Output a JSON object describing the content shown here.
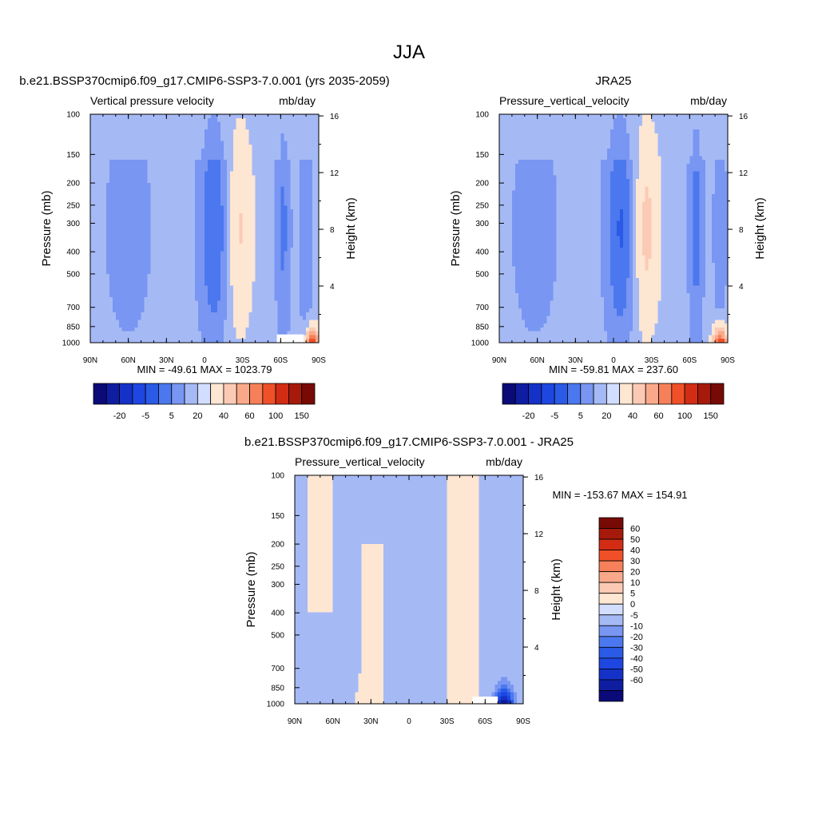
{
  "page": {
    "season_title": "JJA"
  },
  "palette": {
    "full": [
      "#0a0a78",
      "#0f1ea0",
      "#1432c8",
      "#1e46e1",
      "#2a5ae6",
      "#4b78ee",
      "#7896f2",
      "#a5b9f5",
      "#d2deff",
      "#fde6d2",
      "#fccab4",
      "#f9a98a",
      "#f6805a",
      "#f05028",
      "#d22d14",
      "#a51a0a",
      "#780a05"
    ],
    "diff": [
      "#0a0a78",
      "#0f1ea0",
      "#1432c8",
      "#1e46e1",
      "#2a5ae6",
      "#4b78ee",
      "#7896f2",
      "#a5b9f5",
      "#d2deff",
      "#fde6d2",
      "#fccab4",
      "#f9a98a",
      "#f6805a",
      "#f05028",
      "#d22d14",
      "#a51a0a",
      "#780a05"
    ]
  },
  "chart_data": [
    {
      "id": "model",
      "type": "heatmap",
      "title": "b.e21.BSSP370cmip6.f09_g17.CMIP6-SSP3-7.0.001 (yrs 2035-2059)",
      "variable": "Vertical pressure velocity",
      "units": "mb/day",
      "ylabel": "Pressure (mb)",
      "ylabel_right": "Height (km)",
      "x_ticks": [
        "90N",
        "60N",
        "30N",
        "0",
        "30S",
        "60S",
        "90S"
      ],
      "x_values": [
        90,
        60,
        30,
        0,
        -30,
        -60,
        -90
      ],
      "xlim": [
        90,
        -90
      ],
      "y_ticks": [
        100,
        150,
        200,
        250,
        300,
        400,
        500,
        700,
        850,
        1000
      ],
      "ylim": [
        1000,
        100
      ],
      "y_scale": "log",
      "right_ticks": [
        16,
        12,
        8,
        4
      ],
      "stats": "MIN = -49.61  MAX = 1023.79",
      "colorbar": {
        "orientation": "horizontal",
        "labels": [
          "-20",
          "-5",
          "5",
          "20",
          "40",
          "60",
          "100",
          "150"
        ]
      },
      "features": [
        {
          "lat": -10,
          "width": 9,
          "amp": -3.0
        },
        {
          "lat": -24,
          "width": 10,
          "amp": 2.2
        },
        {
          "lat": 60,
          "width": 14,
          "amp": -0.9
        },
        {
          "lat": -62,
          "width": 4,
          "amp": -1.6
        },
        {
          "lat": -80,
          "width": 4,
          "amp": -1.2
        }
      ],
      "polar_warm": {
        "lat": -85,
        "amp": 6.0
      },
      "missing": {
        "lat_from": -57,
        "lat_to": -78,
        "p_from": 920,
        "p_to": 1000
      }
    },
    {
      "id": "obs",
      "type": "heatmap",
      "title": "JRA25",
      "variable": "Pressure_vertical_velocity",
      "units": "mb/day",
      "ylabel": "Pressure (mb)",
      "ylabel_right": "Height (km)",
      "x_ticks": [
        "90N",
        "60N",
        "30N",
        "0",
        "30S",
        "60S",
        "90S"
      ],
      "x_values": [
        90,
        60,
        30,
        0,
        -30,
        -60,
        -90
      ],
      "xlim": [
        90,
        -90
      ],
      "y_ticks": [
        100,
        150,
        200,
        250,
        300,
        400,
        500,
        700,
        850,
        1000
      ],
      "ylim": [
        1000,
        100
      ],
      "y_scale": "log",
      "right_ticks": [
        16,
        12,
        8,
        4
      ],
      "stats": "MIN = -59.81  MAX = 237.60",
      "colorbar": {
        "orientation": "horizontal",
        "labels": [
          "-20",
          "-5",
          "5",
          "20",
          "40",
          "60",
          "100",
          "150"
        ]
      },
      "features": [
        {
          "lat": -8,
          "width": 9,
          "amp": -3.2
        },
        {
          "lat": -22,
          "width": 10,
          "amp": 2.4
        },
        {
          "lat": 62,
          "width": 14,
          "amp": -0.9
        },
        {
          "lat": -65,
          "width": 4,
          "amp": -1.8
        },
        {
          "lat": -84,
          "width": 4,
          "amp": -1.0
        }
      ],
      "polar_warm": {
        "lat": -84,
        "amp": 6.5
      },
      "missing": null
    },
    {
      "id": "diff",
      "type": "heatmap",
      "title": "b.e21.BSSP370cmip6.f09_g17.CMIP6-SSP3-7.0.001 - JRA25",
      "variable": "Pressure_vertical_velocity",
      "units": "mb/day",
      "ylabel": "Pressure (mb)",
      "ylabel_right": "Height (km)",
      "x_ticks": [
        "90N",
        "60N",
        "30N",
        "0",
        "30S",
        "60S",
        "90S"
      ],
      "x_values": [
        90,
        60,
        30,
        0,
        -30,
        -60,
        -90
      ],
      "xlim": [
        90,
        -90
      ],
      "y_ticks": [
        100,
        150,
        200,
        250,
        300,
        400,
        500,
        700,
        850,
        1000
      ],
      "ylim": [
        1000,
        100
      ],
      "y_scale": "log",
      "right_ticks": [
        16,
        12,
        8,
        4
      ],
      "stats": "MIN = -153.67  MAX = 154.91",
      "colorbar": {
        "orientation": "vertical",
        "labels": [
          "60",
          "50",
          "40",
          "30",
          "20",
          "10",
          "5",
          "0",
          "-5",
          "-10",
          "-20",
          "-30",
          "-40",
          "-50",
          "-60"
        ]
      },
      "missing": {
        "lat_from": -50,
        "lat_to": -70,
        "p_from": 930,
        "p_to": 1000
      }
    }
  ]
}
